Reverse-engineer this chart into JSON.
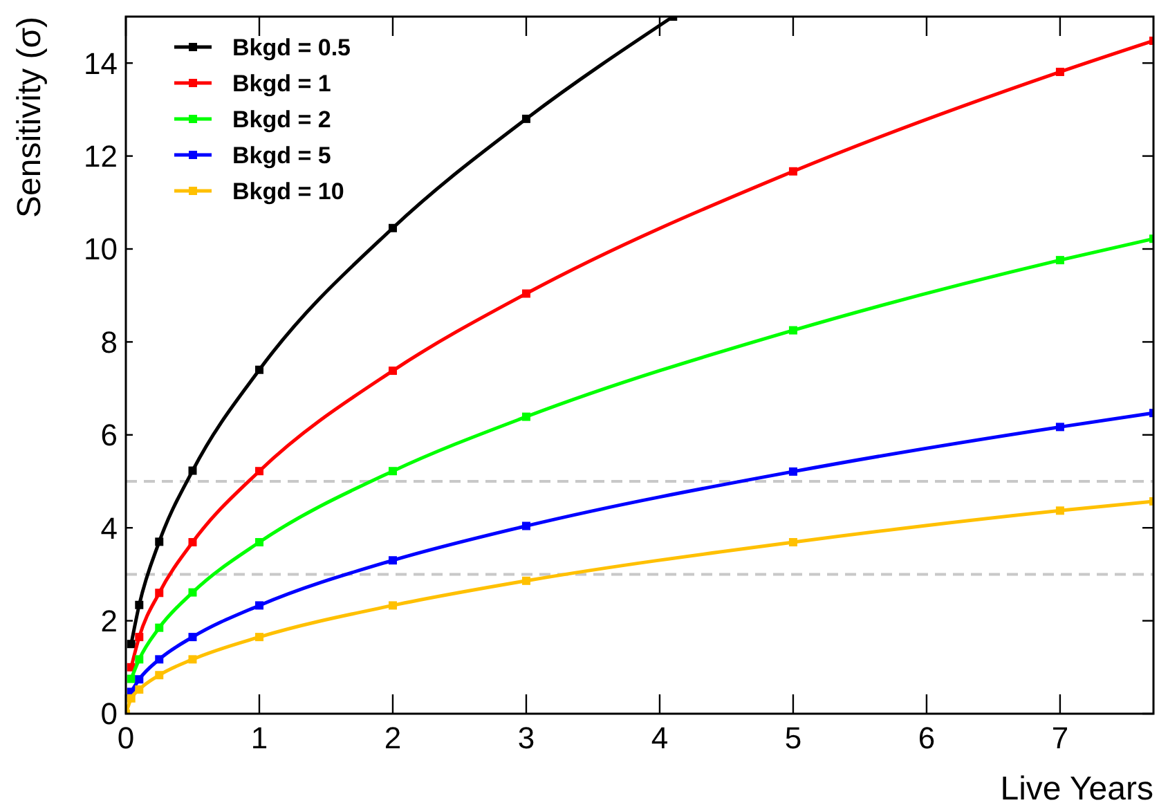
{
  "chart_data": {
    "type": "line",
    "xlabel": "Live Years",
    "ylabel": "Sensitivity (σ)",
    "xlim": [
      0,
      7.7
    ],
    "ylim": [
      0,
      15
    ],
    "xticks": [
      0,
      1,
      2,
      3,
      4,
      5,
      6,
      7
    ],
    "yticks": [
      0,
      2,
      4,
      6,
      8,
      10,
      12,
      14
    ],
    "grid": false,
    "legend": "top left",
    "marker": "square",
    "line_style": "solid",
    "ref_lines": [
      {
        "axis": "y",
        "value": 3,
        "color": "#c8c8c8",
        "line_style": "dashed"
      },
      {
        "axis": "y",
        "value": 5,
        "color": "#c8c8c8",
        "line_style": "dashed"
      }
    ],
    "series": [
      {
        "name": "Bkgd = 0.5",
        "color": "#000000",
        "x": [
          0.04,
          0.1,
          0.25,
          0.5,
          1,
          2,
          3,
          4.1
        ],
        "values": [
          1.5,
          2.34,
          3.7,
          5.23,
          7.4,
          10.45,
          12.8,
          15
        ]
      },
      {
        "name": "Bkgd = 1",
        "color": "#ff0000",
        "x": [
          0.04,
          0.1,
          0.25,
          0.5,
          1,
          2,
          3,
          5,
          7,
          7.7
        ],
        "values": [
          1.0,
          1.65,
          2.6,
          3.69,
          5.22,
          7.38,
          9.04,
          11.67,
          13.81,
          14.48
        ]
      },
      {
        "name": "Bkgd = 2",
        "color": "#00ff00",
        "x": [
          0.04,
          0.1,
          0.25,
          0.5,
          1,
          2,
          3,
          5,
          7,
          7.7
        ],
        "values": [
          0.75,
          1.17,
          1.85,
          2.61,
          3.69,
          5.22,
          6.39,
          8.25,
          9.76,
          10.22
        ]
      },
      {
        "name": "Bkgd = 5",
        "color": "#0000ff",
        "x": [
          0.04,
          0.1,
          0.25,
          0.5,
          1,
          2,
          3,
          5,
          7,
          7.7
        ],
        "values": [
          0.47,
          0.74,
          1.17,
          1.65,
          2.33,
          3.3,
          4.04,
          5.21,
          6.17,
          6.47
        ]
      },
      {
        "name": "Bkgd = 10",
        "color": "#ffc000",
        "x": [
          0,
          0.04,
          0.1,
          0.25,
          0.5,
          1,
          2,
          3,
          5,
          7,
          7.7
        ],
        "values": [
          0,
          0.33,
          0.52,
          0.83,
          1.17,
          1.65,
          2.33,
          2.86,
          3.69,
          4.37,
          4.57
        ]
      }
    ]
  }
}
